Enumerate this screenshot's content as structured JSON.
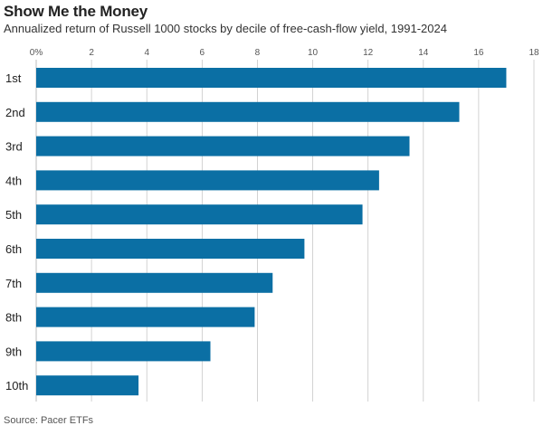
{
  "header": {
    "title": "Show Me the Money",
    "subtitle": "Annualized return of Russell 1000 stocks by decile of free-cash-flow yield, 1991-2024"
  },
  "footer": {
    "source": "Source: Pacer ETFs"
  },
  "colors": {
    "bar": "#0b6fa4",
    "grid": "#c8c8c8",
    "axis_text": "#555555"
  },
  "chart_data": {
    "type": "bar",
    "orientation": "horizontal",
    "title": "Show Me the Money",
    "subtitle": "Annualized return of Russell 1000 stocks by decile of free-cash-flow yield, 1991-2024",
    "categories": [
      "1st",
      "2nd",
      "3rd",
      "4th",
      "5th",
      "6th",
      "7th",
      "8th",
      "9th",
      "10th"
    ],
    "values": [
      17.0,
      15.3,
      13.5,
      12.4,
      11.8,
      9.7,
      8.55,
      7.9,
      6.3,
      3.7
    ],
    "xlim": [
      0,
      18
    ],
    "xticks": [
      0,
      2,
      4,
      6,
      8,
      10,
      12,
      14,
      16,
      18
    ],
    "xtick_labels": [
      "0%",
      "2",
      "4",
      "6",
      "8",
      "10",
      "12",
      "14",
      "16",
      "18"
    ],
    "xaxis_position": "top",
    "grid": true,
    "source": "Source: Pacer ETFs"
  }
}
